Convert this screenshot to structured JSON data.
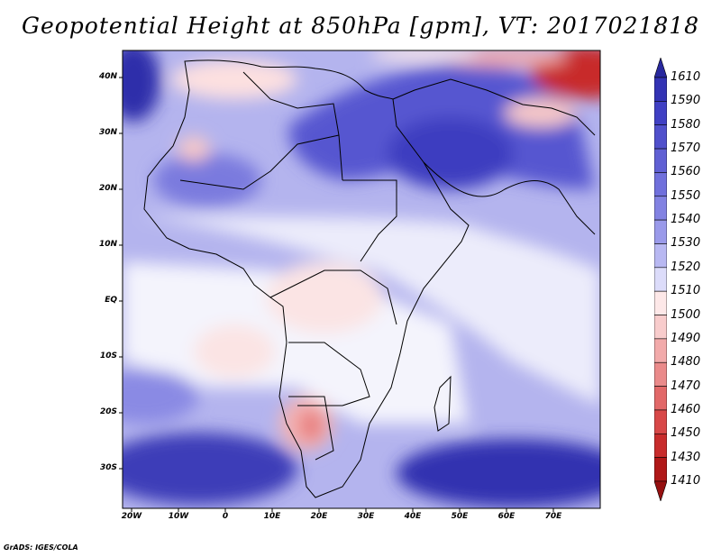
{
  "title": "Geopotential Height at 850hPa [gpm], VT: 2017021818",
  "footer": "GrADS: IGES/COLA",
  "map": {
    "lat_labels": [
      "40N",
      "30N",
      "20N",
      "10N",
      "EQ",
      "10S",
      "20S",
      "30S"
    ],
    "lon_labels": [
      "20W",
      "10W",
      "0",
      "10E",
      "20E",
      "30E",
      "40E",
      "50E",
      "60E",
      "70E"
    ]
  },
  "colorbar": {
    "labels": [
      "1610",
      "1590",
      "1580",
      "1570",
      "1560",
      "1550",
      "1540",
      "1530",
      "1520",
      "1510",
      "1500",
      "1490",
      "1480",
      "1470",
      "1460",
      "1450",
      "1430",
      "1410"
    ],
    "colors": [
      "#28289e",
      "#3333b4",
      "#4040c4",
      "#5050cc",
      "#6060d4",
      "#7070dc",
      "#8282e2",
      "#9a9aea",
      "#b8b8f2",
      "#dcdcfa",
      "#fde8e8",
      "#f8cccc",
      "#f2aaaa",
      "#ea8a8a",
      "#e26868",
      "#d84848",
      "#c82c2c",
      "#b01818",
      "#961010"
    ]
  }
}
